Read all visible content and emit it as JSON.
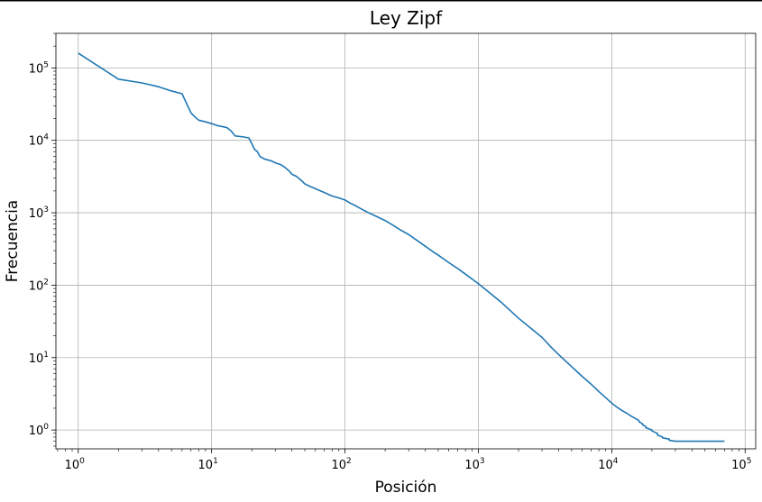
{
  "chart_data": {
    "type": "line",
    "title": "Ley Zipf",
    "xlabel": "Posición",
    "ylabel": "Frecuencia",
    "xscale": "log",
    "yscale": "log",
    "xlim": [
      0.68,
      120000
    ],
    "ylim": [
      0.55,
      300000
    ],
    "grid": true,
    "line_color": "#1f77b4",
    "x_ticks": [
      {
        "value": 1,
        "base": "10",
        "exp": "0"
      },
      {
        "value": 10,
        "base": "10",
        "exp": "1"
      },
      {
        "value": 100,
        "base": "10",
        "exp": "2"
      },
      {
        "value": 1000,
        "base": "10",
        "exp": "3"
      },
      {
        "value": 10000,
        "base": "10",
        "exp": "4"
      },
      {
        "value": 100000,
        "base": "10",
        "exp": "5"
      }
    ],
    "y_ticks": [
      {
        "value": 1,
        "base": "10",
        "exp": "0"
      },
      {
        "value": 10,
        "base": "10",
        "exp": "1"
      },
      {
        "value": 100,
        "base": "10",
        "exp": "2"
      },
      {
        "value": 1000,
        "base": "10",
        "exp": "3"
      },
      {
        "value": 10000,
        "base": "10",
        "exp": "4"
      },
      {
        "value": 100000,
        "base": "10",
        "exp": "5"
      }
    ],
    "series": [
      {
        "x": [
          1,
          2,
          3,
          4,
          5,
          6,
          6.5,
          7,
          7.5,
          8,
          9,
          10,
          11,
          12,
          13,
          14,
          15,
          17,
          19,
          20,
          21,
          22,
          23,
          25,
          28,
          30,
          33,
          35,
          38,
          40,
          43,
          45,
          48,
          50,
          55,
          60,
          70,
          80,
          90,
          100,
          110,
          120,
          130,
          150,
          170,
          200,
          230,
          260,
          300,
          350,
          400,
          450,
          500,
          600,
          700,
          800,
          1000,
          1200,
          1500,
          2000,
          2500,
          3000,
          3500,
          4000,
          5000,
          6000,
          7000,
          8000,
          9000,
          10000,
          11000,
          12000,
          13000,
          14000,
          15000,
          16000,
          16000,
          17000,
          17000,
          18000,
          18000,
          20000,
          20000,
          22000,
          22000,
          24000,
          24000,
          27000,
          27000,
          30000,
          30000,
          40000,
          40000,
          70000
        ],
        "y": [
          160000,
          70000,
          62000,
          55000,
          48000,
          44000,
          32000,
          24000,
          21000,
          19000,
          18000,
          17000,
          16000,
          15500,
          15000,
          13500,
          11500,
          11200,
          10800,
          9000,
          7500,
          7000,
          6000,
          5500,
          5200,
          4900,
          4600,
          4300,
          3800,
          3400,
          3200,
          3000,
          2700,
          2500,
          2300,
          2150,
          1900,
          1700,
          1600,
          1500,
          1350,
          1250,
          1150,
          1000,
          900,
          780,
          670,
          580,
          500,
          410,
          345,
          295,
          260,
          205,
          170,
          142,
          105,
          80,
          57,
          35,
          25,
          19,
          14,
          11,
          7.5,
          5.5,
          4.3,
          3.4,
          2.8,
          2.35,
          2.05,
          1.85,
          1.7,
          1.55,
          1.45,
          1.35,
          1.3,
          1.22,
          1.18,
          1.12,
          1.08,
          1.0,
          0.97,
          0.9,
          0.85,
          0.8,
          0.78,
          0.75,
          0.72,
          0.7,
          0.7,
          0.7,
          0.7,
          0.7
        ]
      }
    ]
  }
}
